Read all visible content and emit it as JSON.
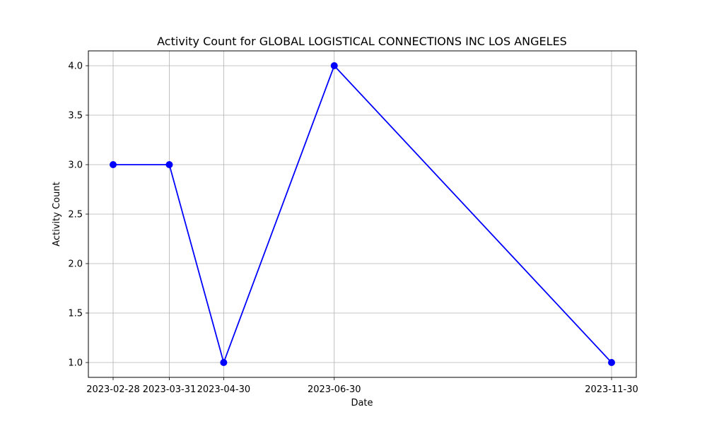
{
  "chart_data": {
    "type": "line",
    "title": "Activity Count for GLOBAL LOGISTICAL CONNECTIONS INC LOS ANGELES",
    "xlabel": "Date",
    "ylabel": "Activity Count",
    "categories": [
      "2023-02-28",
      "2023-03-31",
      "2023-04-30",
      "2023-06-30",
      "2023-11-30"
    ],
    "series": [
      {
        "values": [
          3,
          3,
          1,
          4,
          1
        ],
        "color": "#0000ff",
        "marker": "circle"
      }
    ],
    "ylim": [
      0.85,
      4.15
    ],
    "yticks": [
      "1.0",
      "1.5",
      "2.0",
      "2.5",
      "3.0",
      "3.5",
      "4.0"
    ],
    "grid": true,
    "legend": "none"
  }
}
